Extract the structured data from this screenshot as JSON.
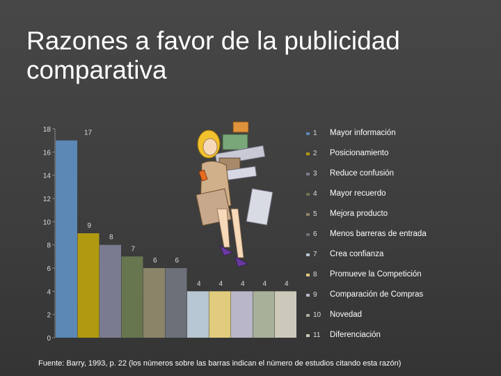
{
  "slide": {
    "title": "Razones a favor de la publicidad comparativa",
    "footnote": "Fuente: Barry, 1993, p. 22 (los números sobre las barras indican el número de estudios citando esta razón)"
  },
  "chart_data": {
    "type": "bar",
    "categories": [
      "1",
      "2",
      "3",
      "4",
      "5",
      "6",
      "7",
      "8",
      "9",
      "10",
      "11"
    ],
    "values": [
      17,
      9,
      8,
      7,
      6,
      6,
      4,
      4,
      4,
      4,
      4
    ],
    "colors": [
      "#5b88b4",
      "#b09a10",
      "#7a7a90",
      "#687650",
      "#8c8468",
      "#6c7078",
      "#b6c6d2",
      "#e0cc7c",
      "#b8b6c8",
      "#a8b09a",
      "#ccc9ba"
    ],
    "ylim": [
      0,
      18
    ],
    "yticks": [
      0,
      2,
      4,
      6,
      8,
      10,
      12,
      14,
      16,
      18
    ],
    "legend_position": "right",
    "legend": [
      {
        "num": "1",
        "label": "Mayor información"
      },
      {
        "num": "2",
        "label": "Posicionamiento"
      },
      {
        "num": "3",
        "label": "Reduce confusión"
      },
      {
        "num": "4",
        "label": "Mayor recuerdo"
      },
      {
        "num": "5",
        "label": "Mejora producto"
      },
      {
        "num": "6",
        "label": "Menos barreras de entrada"
      },
      {
        "num": "7",
        "label": "Crea confianza"
      },
      {
        "num": "8",
        "label": "Promueve la Competición"
      },
      {
        "num": "9",
        "label": "Comparación de Compras"
      },
      {
        "num": "10",
        "label": "Novedad"
      },
      {
        "num": "11",
        "label": "Diferenciación"
      }
    ],
    "grid": false
  },
  "illustration": {
    "icon": "shopping-woman-clipart-icon"
  }
}
